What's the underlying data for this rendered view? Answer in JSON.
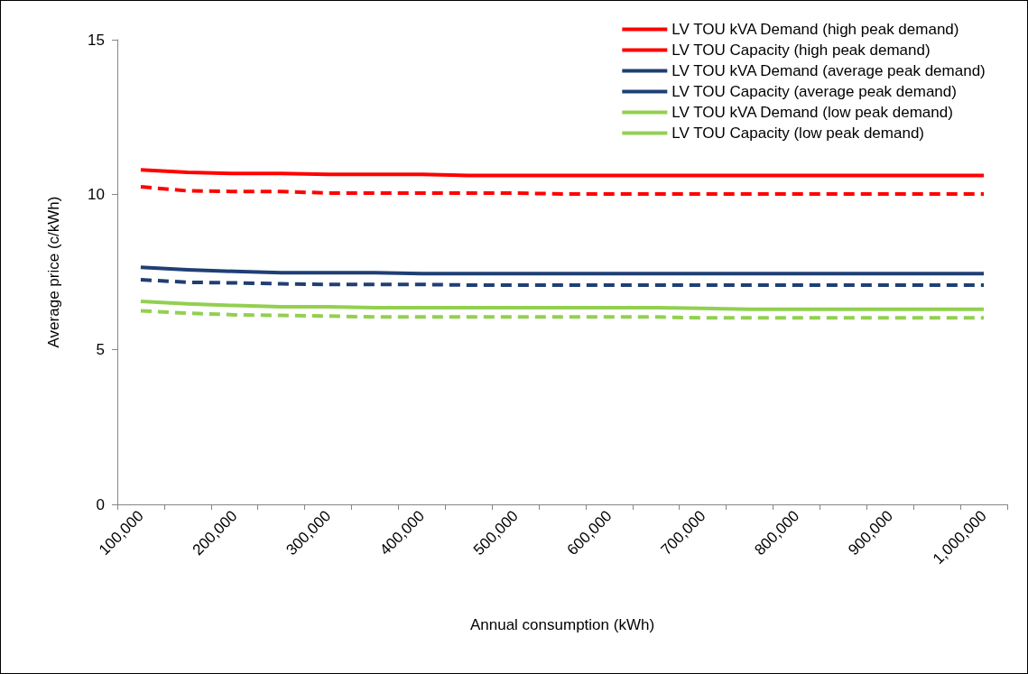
{
  "chart_data": {
    "type": "line",
    "xlabel": "Annual consumption (kWh)",
    "ylabel": "Average price (c/kWh)",
    "categories": [
      "100,000",
      null,
      "200,000",
      null,
      "300,000",
      null,
      "400,000",
      null,
      "500,000",
      null,
      "600,000",
      null,
      "700,000",
      null,
      "800,000",
      null,
      "900,000",
      null,
      "1,000,000"
    ],
    "ylim": [
      0,
      15
    ],
    "yticks": [
      0,
      5,
      10,
      15
    ],
    "grid": false,
    "legend": "top right",
    "marker": "none",
    "series": [
      {
        "name": "LV TOU kVA Demand (high peak demand)",
        "color": "#ff0000",
        "line_style": "solid",
        "values": [
          10.8,
          10.72,
          10.68,
          10.68,
          10.65,
          10.65,
          10.65,
          10.62,
          10.62,
          10.62,
          10.62,
          10.62,
          10.62,
          10.62,
          10.62,
          10.62,
          10.62,
          10.62,
          10.62
        ]
      },
      {
        "name": "LV TOU Capacity (high peak demand)",
        "color": "#ff0000",
        "line_style": "dashed",
        "values": [
          10.25,
          10.12,
          10.1,
          10.1,
          10.05,
          10.05,
          10.05,
          10.05,
          10.05,
          10.02,
          10.02,
          10.02,
          10.02,
          10.02,
          10.02,
          10.02,
          10.02,
          10.02,
          10.02
        ]
      },
      {
        "name": "LV TOU kVA Demand (average peak demand)",
        "color": "#1f3f74",
        "line_style": "solid",
        "values": [
          7.65,
          7.57,
          7.52,
          7.48,
          7.48,
          7.48,
          7.45,
          7.45,
          7.45,
          7.45,
          7.45,
          7.45,
          7.45,
          7.45,
          7.45,
          7.45,
          7.45,
          7.45,
          7.45
        ]
      },
      {
        "name": "LV TOU Capacity (average peak demand)",
        "color": "#1f3f74",
        "line_style": "dashed",
        "values": [
          7.25,
          7.17,
          7.15,
          7.12,
          7.1,
          7.1,
          7.1,
          7.08,
          7.08,
          7.08,
          7.08,
          7.08,
          7.08,
          7.08,
          7.08,
          7.08,
          7.08,
          7.08,
          7.08
        ]
      },
      {
        "name": "LV TOU kVA Demand (low peak demand)",
        "color": "#92d050",
        "line_style": "solid",
        "values": [
          6.55,
          6.47,
          6.42,
          6.38,
          6.38,
          6.35,
          6.35,
          6.35,
          6.35,
          6.35,
          6.35,
          6.35,
          6.33,
          6.3,
          6.3,
          6.3,
          6.3,
          6.3,
          6.3
        ]
      },
      {
        "name": "LV TOU Capacity (low peak demand)",
        "color": "#92d050",
        "line_style": "dashed",
        "values": [
          6.25,
          6.17,
          6.12,
          6.1,
          6.08,
          6.05,
          6.05,
          6.05,
          6.05,
          6.05,
          6.05,
          6.05,
          6.02,
          6.02,
          6.02,
          6.02,
          6.02,
          6.02,
          6.02
        ]
      }
    ]
  }
}
